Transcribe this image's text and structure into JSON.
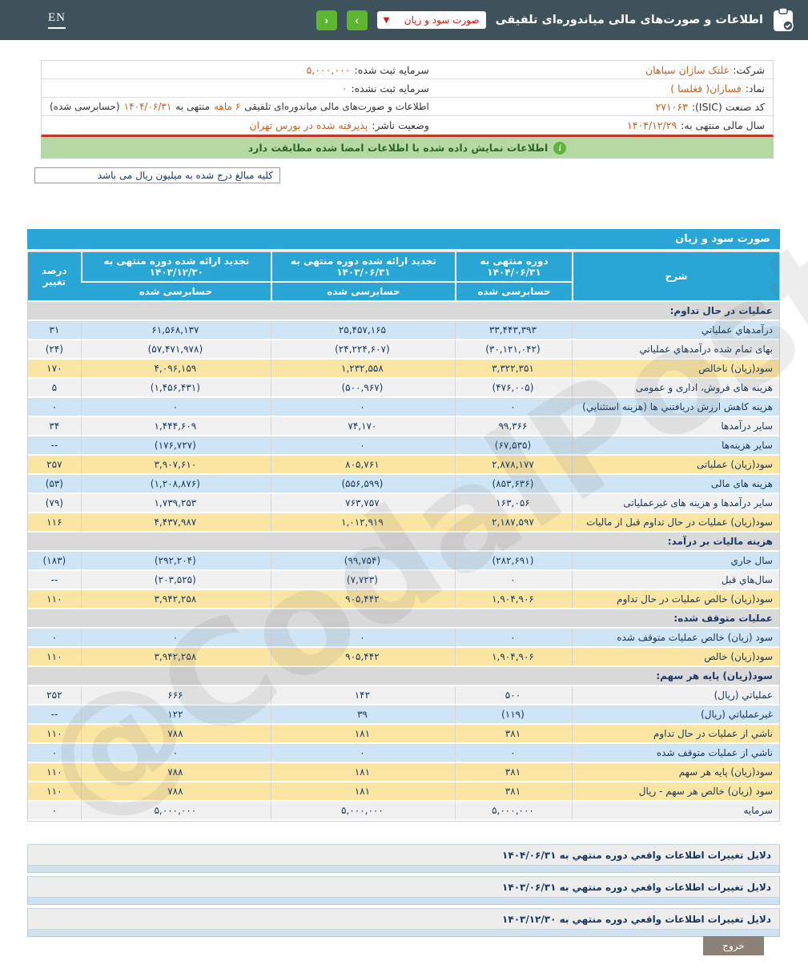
{
  "header": {
    "title": "اطلاعات و صورت‌های مالی میاندوره‌ای تلفیقی",
    "dropdown_value": "صورت سود و زیان",
    "next_label": "›",
    "prev_label": "‹",
    "en_label": "EN"
  },
  "info": {
    "company_label": "شرکت:",
    "company_value": "غلتک سازان سپاهان",
    "registered_capital_label": "سرمایه ثبت شده:",
    "registered_capital_value": "۵,۰۰۰,۰۰۰",
    "symbol_label": "نماد:",
    "symbol_value": "فسازان( فغلسا )",
    "unregistered_capital_label": "سرمایه ثبت نشده:",
    "unregistered_capital_value": "۰",
    "isic_label": "کد صنعت (ISIC):",
    "isic_value": "۲۷۱۰۶۳",
    "report_sentence_p1": "اطلاعات و صورت‌های مالی میاندوره‌ای تلفیقی",
    "report_sentence_hl1": "۶ ماهه",
    "report_sentence_p2": "منتهی به",
    "report_sentence_hl2": "۱۴۰۴/۰۶/۳۱",
    "report_sentence_p3": "(حسابرسی شده)",
    "fiscal_year_label": "سال مالی منتهی به:",
    "fiscal_year_value": "۱۴۰۴/۱۲/۲۹",
    "issuer_status_label": "وضعیت ناشر:",
    "issuer_status_value": "پذیرفته شده در بورس تهران"
  },
  "notice_text": "اطلاعات نمایش داده شده با اطلاعات امضا شده مطابقت دارد",
  "units_note": "کلیه مبالغ درج شده به میلیون ریال می باشد",
  "statement": {
    "title": "صورت سود و زیان",
    "columns": {
      "desc": "شرح",
      "c1": "دوره منتهی به ۱۴۰۴/۰۶/۳۱",
      "c2": "تجدید ارائه شده دوره منتهی به ۱۴۰۳/۰۶/۳۱",
      "c3": "تجدید ارائه شده دوره منتهی به ۱۴۰۳/۱۲/۳۰",
      "pct": "درصد تغییر",
      "audited": "حسابرسی شده"
    },
    "rows": [
      {
        "type": "section",
        "label": "عملیات در حال تداوم:"
      },
      {
        "type": "data",
        "cls": "blue",
        "label": "درآمدهاي عملياتي",
        "v1": "۳۳,۴۴۳,۳۹۳",
        "v2": "۲۵,۴۵۷,۱۶۵",
        "v3": "۶۱,۵۶۸,۱۳۷",
        "pct": "۳۱"
      },
      {
        "type": "data",
        "cls": "gray",
        "label": "بهای تمام شده درآمدهاي عملياتي",
        "v1": "(۳۰,۱۲۱,۰۴۲)",
        "v2": "(۲۴,۲۲۴,۶۰۷)",
        "v3": "(۵۷,۴۷۱,۹۷۸)",
        "pct": "(۲۴)"
      },
      {
        "type": "data",
        "cls": "yellow",
        "label": "سود(زیان) ناخالص",
        "v1": "۳,۳۲۲,۳۵۱",
        "v2": "۱,۲۳۲,۵۵۸",
        "v3": "۴,۰۹۶,۱۵۹",
        "pct": "۱۷۰"
      },
      {
        "type": "data",
        "cls": "gray",
        "label": "هزینه های فروش، اداری و عمومی",
        "v1": "(۴۷۶,۰۰۵)",
        "v2": "(۵۰۰,۹۶۷)",
        "v3": "(۱,۴۵۶,۴۳۱)",
        "pct": "۵"
      },
      {
        "type": "data",
        "cls": "blue",
        "label": "هزینه کاهش ارزش دریافتني ها (هزینه استثنايي)",
        "v1": "۰",
        "v2": "۰",
        "v3": "۰",
        "pct": "۰"
      },
      {
        "type": "data",
        "cls": "gray",
        "label": "سایر درآمدها",
        "v1": "۹۹,۳۶۶",
        "v2": "۷۴,۱۷۰",
        "v3": "۱,۴۴۴,۶۰۹",
        "pct": "۳۴"
      },
      {
        "type": "data",
        "cls": "blue",
        "label": "سایر هزینه‌ها",
        "v1": "(۶۷,۵۳۵)",
        "v2": "۰",
        "v3": "(۱۷۶,۷۲۷)",
        "pct": "--"
      },
      {
        "type": "data",
        "cls": "yellow",
        "label": "سود(زیان) عملیاتی",
        "v1": "۲,۸۷۸,۱۷۷",
        "v2": "۸۰۵,۷۶۱",
        "v3": "۳,۹۰۷,۶۱۰",
        "pct": "۲۵۷"
      },
      {
        "type": "data",
        "cls": "blue",
        "label": "هزینه های مالی",
        "v1": "(۸۵۳,۶۳۶)",
        "v2": "(۵۵۶,۵۹۹)",
        "v3": "(۱,۲۰۸,۸۷۶)",
        "pct": "(۵۳)"
      },
      {
        "type": "data",
        "cls": "gray",
        "label": "سایر درآمدها و هزینه های غیرعملیاتی",
        "v1": "۱۶۳,۰۵۶",
        "v2": "۷۶۳,۷۵۷",
        "v3": "۱,۷۳۹,۲۵۳",
        "pct": "(۷۹)"
      },
      {
        "type": "data",
        "cls": "yellow",
        "label": "سود(زیان) عملیات در حال تداوم قبل از مالیات",
        "v1": "۲,۱۸۷,۵۹۷",
        "v2": "۱,۰۱۲,۹۱۹",
        "v3": "۴,۴۳۷,۹۸۷",
        "pct": "۱۱۶"
      },
      {
        "type": "section",
        "label": "هزینه مالیات بر درآمد:"
      },
      {
        "type": "data",
        "cls": "blue",
        "label": "سال جاري",
        "v1": "(۲۸۲,۶۹۱)",
        "v2": "(۹۹,۷۵۴)",
        "v3": "(۲۹۲,۲۰۴)",
        "pct": "(۱۸۳)"
      },
      {
        "type": "data",
        "cls": "gray",
        "label": "سال‌هاي قبل",
        "v1": "۰",
        "v2": "(۷,۷۲۳)",
        "v3": "(۲۰۳,۵۲۵)",
        "pct": "--"
      },
      {
        "type": "data",
        "cls": "yellow",
        "label": "سود(زیان) خالص عملیات در حال تداوم",
        "v1": "۱,۹۰۴,۹۰۶",
        "v2": "۹۰۵,۴۴۲",
        "v3": "۳,۹۴۲,۲۵۸",
        "pct": "۱۱۰"
      },
      {
        "type": "section",
        "label": "عملیات متوقف شده:"
      },
      {
        "type": "data",
        "cls": "blue",
        "label": "سود (زیان) خالص عملیات متوقف شده",
        "v1": "۰",
        "v2": "۰",
        "v3": "۰",
        "pct": "۰"
      },
      {
        "type": "data",
        "cls": "yellow",
        "label": "سود(زیان) خالص",
        "v1": "۱,۹۰۴,۹۰۶",
        "v2": "۹۰۵,۴۴۲",
        "v3": "۳,۹۴۲,۲۵۸",
        "pct": "۱۱۰"
      },
      {
        "type": "section",
        "label": "سود(زیان) پایه هر سهم:"
      },
      {
        "type": "data",
        "cls": "gray",
        "label": "عملیاتي (ریال)",
        "v1": "۵۰۰",
        "v2": "۱۴۲",
        "v3": "۶۶۶",
        "pct": "۲۵۲"
      },
      {
        "type": "data",
        "cls": "blue",
        "label": "غیرعملیاتي (ریال)",
        "v1": "(۱۱۹)",
        "v2": "۳۹",
        "v3": "۱۲۲",
        "pct": "--"
      },
      {
        "type": "data",
        "cls": "yellow",
        "label": "ناشي از عملیات در حال تداوم",
        "v1": "۳۸۱",
        "v2": "۱۸۱",
        "v3": "۷۸۸",
        "pct": "۱۱۰"
      },
      {
        "type": "data",
        "cls": "blue",
        "label": "ناشي از عملیات متوقف شده",
        "v1": "۰",
        "v2": "۰",
        "v3": "۰",
        "pct": "۰"
      },
      {
        "type": "data",
        "cls": "yellow",
        "label": "سود(زیان) پایه هر سهم",
        "v1": "۳۸۱",
        "v2": "۱۸۱",
        "v3": "۷۸۸",
        "pct": "۱۱۰"
      },
      {
        "type": "data",
        "cls": "yellow",
        "label": "سود (زیان) خالص هر سهم - ریال",
        "v1": "۳۸۱",
        "v2": "۱۸۱",
        "v3": "۷۸۸",
        "pct": "۱۱۰"
      },
      {
        "type": "data",
        "cls": "gray",
        "label": "سرمایه",
        "v1": "۵,۰۰۰,۰۰۰",
        "v2": "۵,۰۰۰,۰۰۰",
        "v3": "۵,۰۰۰,۰۰۰",
        "pct": "۰"
      }
    ]
  },
  "footer_links": [
    {
      "label": "دلایل تغییرات اطلاعات واقعي دوره منتهي به ۱۴۰۴/۰۶/۳۱"
    },
    {
      "label": "دلایل تغییرات اطلاعات واقعي دوره منتهي به ۱۴۰۳/۰۶/۳۱"
    },
    {
      "label": "دلایل تغییرات اطلاعات واقعي دوره منتهي به ۱۴۰۳/۱۲/۳۰"
    }
  ],
  "exit_button": "خروج",
  "watermark": "@CodalPost",
  "colors": {
    "topbar": "#3d525b",
    "accent_blue": "#2aa6d6",
    "green_button": "#5cb62f",
    "notice_green": "#b5d8a5",
    "value_orange": "#c96120",
    "negative_red": "#e0201c",
    "navy_text": "#17375e",
    "row_blue": "#cfe4f4",
    "row_yellow": "#fbe5a3",
    "row_gray": "#f0f0f0",
    "section_gray": "#d9d9d9",
    "divider_red": "#c0392b",
    "exit_gray": "#8b8177"
  }
}
